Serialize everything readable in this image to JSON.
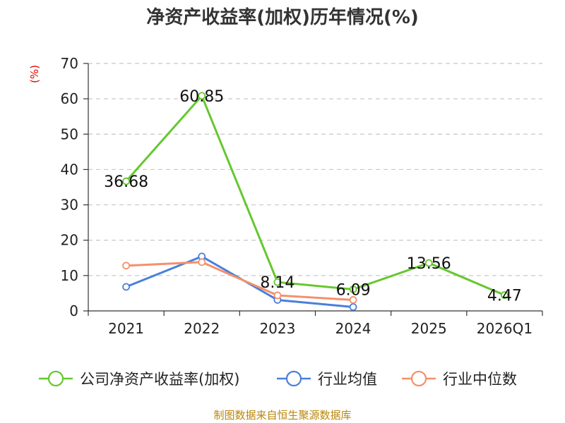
{
  "title": "净资产收益率(加权)历年情况(%)",
  "source": "制图数据来自恒生聚源数据库",
  "chart_data": {
    "type": "line",
    "title": "净资产收益率(加权)历年情况(%)",
    "xlabel": "",
    "ylabel": "(%)",
    "ylim": [
      0,
      70
    ],
    "yticks": [
      "0",
      "10",
      "20",
      "30",
      "40",
      "50",
      "60",
      "70"
    ],
    "categories": [
      "2021",
      "2022",
      "2023",
      "2024",
      "2025",
      "2026Q1"
    ],
    "grid": true,
    "legend_position": "bottom",
    "series": [
      {
        "name": "公司净资产收益率(加权)",
        "color": "#66c72f",
        "values": [
          36.68,
          60.85,
          8.14,
          6.09,
          13.56,
          4.47
        ],
        "labels": [
          "36.68",
          "60.85",
          "8.14",
          "6.09",
          "13.56",
          "4.47"
        ]
      },
      {
        "name": "行业均值",
        "color": "#4a7fdc",
        "values": [
          6.8,
          15.4,
          3.1,
          1.1,
          null,
          null
        ]
      },
      {
        "name": "行业中位数",
        "color": "#f4906a",
        "values": [
          12.8,
          13.8,
          4.4,
          3.1,
          null,
          null
        ]
      }
    ]
  }
}
